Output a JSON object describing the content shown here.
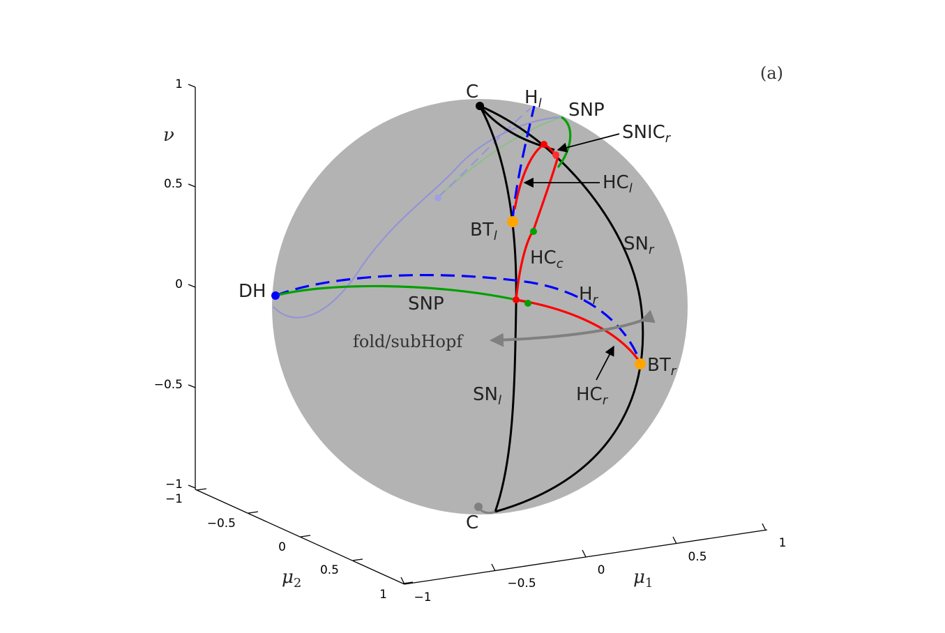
{
  "panel_label": "(a)",
  "axes": {
    "nu": {
      "name": "ν",
      "ticks": [
        "1",
        "0.5",
        "0",
        "−0.5",
        "−1"
      ]
    },
    "mu2": {
      "name": "μ",
      "sub": "2",
      "ticks": [
        "−1",
        "−0.5",
        "0",
        "0.5",
        "1"
      ]
    },
    "mu1": {
      "name": "μ",
      "sub": "1",
      "ticks": [
        "−1",
        "−0.5",
        "0",
        "0.5",
        "1"
      ]
    }
  },
  "labels": {
    "c_top": "C",
    "c_bottom": "C",
    "h_l": {
      "main": "H",
      "sub": "l"
    },
    "snp_top": "SNP",
    "snic_r": {
      "main": "SNIC",
      "sub": "r"
    },
    "hc_l": {
      "main": "HC",
      "sub": "l"
    },
    "bt_l": {
      "main": "BT",
      "sub": "l"
    },
    "hc_c": {
      "main": "HC",
      "sub": "c"
    },
    "sn_r": {
      "main": "SN",
      "sub": "r"
    },
    "dh": "DH",
    "snp_mid": "SNP",
    "h_r": {
      "main": "H",
      "sub": "r"
    },
    "fold": "fold/subHopf",
    "bt_r": {
      "main": "BT",
      "sub": "r"
    },
    "sn_l": {
      "main": "SN",
      "sub": "l"
    },
    "hc_r": {
      "main": "HC",
      "sub": "r"
    }
  },
  "colors": {
    "sphere": "#b3b3b3",
    "sn_curves": "#000000",
    "hopf": "#0000ff",
    "snp": "#00a000",
    "homoclinic": "#ff0000",
    "bt_points": "#ffa500",
    "hidden": "#8c8cd8",
    "fold_arrow": "#808080"
  }
}
